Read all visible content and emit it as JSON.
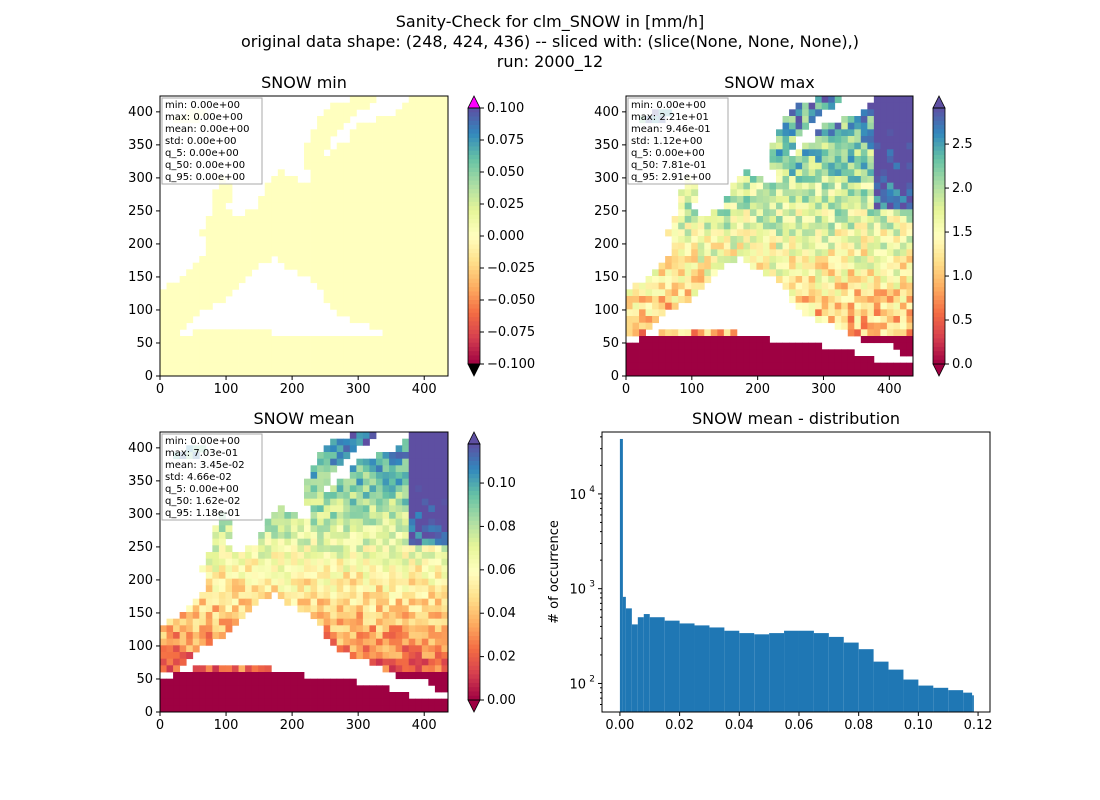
{
  "figure": {
    "title_lines": [
      "Sanity-Check for clm_SNOW in [mm/h]",
      "original data shape: (248, 424, 436) -- sliced with: (slice(None, None, None),)",
      "run: 2000_12"
    ]
  },
  "colors": {
    "cmap_spectral": [
      "#9e0142",
      "#d53e4f",
      "#f46d43",
      "#fdae61",
      "#fee08b",
      "#ffffbf",
      "#e6f598",
      "#abdda4",
      "#66c2a5",
      "#3288bd",
      "#5e4fa2"
    ],
    "over_min_panel": "#ff00ff",
    "under_min_panel": "#000000",
    "histogram_bar": "#1f77b4",
    "land_min_panel": "#ffffbf",
    "sea_zero": "#9e0142"
  },
  "panels": [
    {
      "title": "SNOW min",
      "x_ticks": [
        "0",
        "100",
        "200",
        "300",
        "400"
      ],
      "y_ticks": [
        "0",
        "50",
        "100",
        "150",
        "200",
        "250",
        "300",
        "350",
        "400"
      ],
      "stats": [
        "min: 0.00e+00",
        "max: 0.00e+00",
        "mean: 0.00e+00",
        "std: 0.00e+00",
        "q_5: 0.00e+00",
        "q_50: 0.00e+00",
        "q_95: 0.00e+00"
      ],
      "colorbar_ticks": [
        "0.100",
        "0.075",
        "0.050",
        "0.025",
        "0.000",
        "−0.025",
        "−0.050",
        "−0.075",
        "−0.100"
      ]
    },
    {
      "title": "SNOW max",
      "x_ticks": [
        "0",
        "100",
        "200",
        "300",
        "400"
      ],
      "y_ticks": [
        "0",
        "50",
        "100",
        "150",
        "200",
        "250",
        "300",
        "350",
        "400"
      ],
      "stats": [
        "min: 0.00e+00",
        "max: 2.21e+01",
        "mean: 9.46e-01",
        "std: 1.12e+00",
        "q_5: 0.00e+00",
        "q_50: 7.81e-01",
        "q_95: 2.91e+00"
      ],
      "colorbar_ticks": [
        "2.5",
        "2.0",
        "1.5",
        "1.0",
        "0.5",
        "0.0"
      ]
    },
    {
      "title": "SNOW mean",
      "x_ticks": [
        "0",
        "100",
        "200",
        "300",
        "400"
      ],
      "y_ticks": [
        "0",
        "50",
        "100",
        "150",
        "200",
        "250",
        "300",
        "350",
        "400"
      ],
      "stats": [
        "min: 0.00e+00",
        "max: 7.03e-01",
        "mean: 3.45e-02",
        "std: 4.66e-02",
        "q_5: 0.00e+00",
        "q_50: 1.62e-02",
        "q_95: 1.18e-01"
      ],
      "colorbar_ticks": [
        "0.10",
        "0.08",
        "0.06",
        "0.04",
        "0.02",
        "0.00"
      ]
    }
  ],
  "chart_data": [
    {
      "type": "heatmap",
      "title": "SNOW min",
      "xlim": [
        0,
        436
      ],
      "ylim": [
        0,
        424
      ],
      "color_range": [
        -0.1,
        0.1
      ],
      "colorbar_extend": "both",
      "field_value": 0.0
    },
    {
      "type": "heatmap",
      "title": "SNOW max",
      "xlim": [
        0,
        436
      ],
      "ylim": [
        0,
        424
      ],
      "color_range": [
        0.0,
        2.91
      ],
      "colorbar_extend": "both"
    },
    {
      "type": "heatmap",
      "title": "SNOW mean",
      "xlim": [
        0,
        436
      ],
      "ylim": [
        0,
        424
      ],
      "color_range": [
        0.0,
        0.118
      ],
      "colorbar_extend": "both"
    },
    {
      "type": "bar",
      "title": "SNOW mean - distribution",
      "ylabel": "# of occurrence",
      "yscale": "log",
      "xlim": [
        -0.006,
        0.124
      ],
      "ylim": [
        50,
        45000
      ],
      "x_ticks": [
        "0.00",
        "0.02",
        "0.04",
        "0.06",
        "0.08",
        "0.10",
        "0.12"
      ],
      "y_ticks": [
        "10",
        "10",
        "10"
      ],
      "y_tick_exponents": [
        "2",
        "3",
        "4"
      ],
      "bins": {
        "x": [
          0.0,
          0.001,
          0.002,
          0.004,
          0.006,
          0.008,
          0.01,
          0.015,
          0.02,
          0.025,
          0.03,
          0.035,
          0.04,
          0.045,
          0.05,
          0.055,
          0.06,
          0.065,
          0.07,
          0.075,
          0.08,
          0.085,
          0.09,
          0.095,
          0.1,
          0.105,
          0.11,
          0.115,
          0.118
        ],
        "counts": [
          38000,
          820,
          620,
          420,
          500,
          540,
          500,
          460,
          430,
          410,
          390,
          360,
          340,
          330,
          340,
          360,
          360,
          340,
          310,
          270,
          230,
          170,
          140,
          110,
          95,
          90,
          85,
          80,
          75
        ]
      }
    }
  ]
}
